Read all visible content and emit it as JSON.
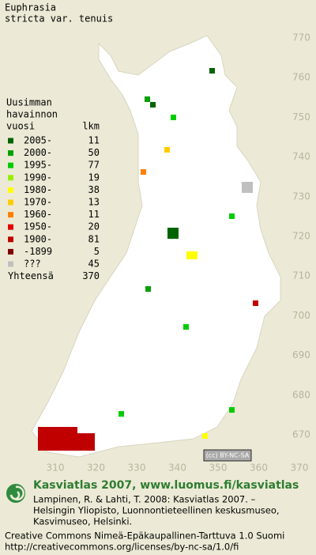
{
  "title": "Euphrasia",
  "subtitle": "stricta var. tenuis",
  "legend": {
    "heading": [
      "Uusimman",
      "havainnon",
      "vuosi"
    ],
    "count_heading": "lkm",
    "entries": [
      {
        "label": "2005-",
        "count": 11,
        "color": "#006400"
      },
      {
        "label": "2000-",
        "count": 50,
        "color": "#00a000"
      },
      {
        "label": "1995-",
        "count": 77,
        "color": "#00cc00"
      },
      {
        "label": "1990-",
        "count": 19,
        "color": "#99ee00"
      },
      {
        "label": "1980-",
        "count": 38,
        "color": "#ffff00"
      },
      {
        "label": "1970-",
        "count": 13,
        "color": "#ffcc00"
      },
      {
        "label": "1960-",
        "count": 11,
        "color": "#ff8000"
      },
      {
        "label": "1950-",
        "count": 20,
        "color": "#e00000"
      },
      {
        "label": "1900-",
        "count": 81,
        "color": "#c00000"
      },
      {
        "label": "-1899",
        "count": 5,
        "color": "#800000"
      },
      {
        "label": "???",
        "count": 45,
        "color": "#c0c0c0"
      }
    ],
    "total_label": "Yhteensä",
    "total": 370
  },
  "x_axis": {
    "labels": [
      310,
      320,
      330,
      340,
      350,
      360,
      370
    ]
  },
  "y_axis": {
    "labels": [
      770,
      760,
      750,
      740,
      730,
      720,
      710,
      700,
      690,
      680,
      670
    ]
  },
  "footer": {
    "badge": "(cc) BY-NC-SA",
    "site": "Kasviatlas 2007, www.luomus.fi/kasviatlas",
    "citation": [
      "Lampinen, R. & Lahti, T. 2008: Kasviatlas 2007. –",
      "Helsingin Yliopisto, Luonnontieteellinen keskusmuseo,",
      "Kasvimuseo, Helsinki."
    ],
    "license": [
      "Creative Commons Nimeä-Epäkaupallinen-Tarttuva 1.0 Suomi",
      "http://creativecommons.org/licenses/by-nc-sa/1.0/fi"
    ]
  }
}
